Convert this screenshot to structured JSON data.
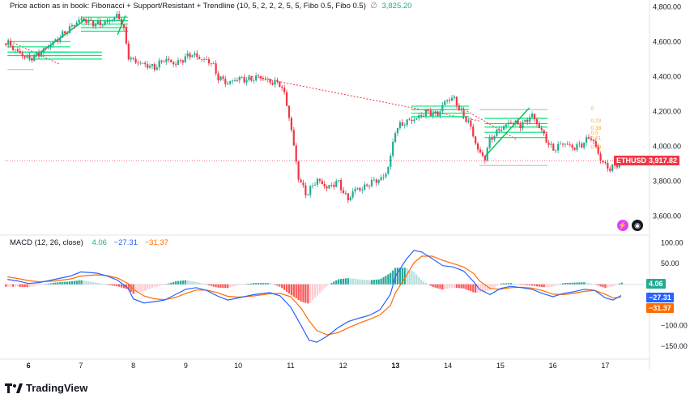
{
  "top_legend": {
    "title": "Price action as in book: Fibonacci + Support/Resistant + Trendline (10, 5, 2, 2, 2, 5, 5, Fibo 0.5, Fibo 0.5)",
    "symbol_char": "∅",
    "value": "3,825.20"
  },
  "macd_legend": {
    "title": "MACD (12, 26, close)",
    "hist_value": "4.06",
    "macd_value": "−27.31",
    "signal_value": "−31.37"
  },
  "price_tag": {
    "symbol": "ETHUSD",
    "value": "3,917.82",
    "color": "#f23645"
  },
  "macd_tags": [
    {
      "value": "4.06",
      "color": "#22ab94"
    },
    {
      "value": "−27.31",
      "color": "#2962ff"
    },
    {
      "value": "−31.37",
      "color": "#ff6d00"
    }
  ],
  "fib_labels": [
    "0",
    "0.23",
    "0.38",
    "0.5",
    "0.61",
    "0.78"
  ],
  "brand": "TradingView",
  "colors": {
    "up": "#22ab94",
    "down": "#f23645",
    "macd": "#2962ff",
    "signal": "#ff6d00",
    "trend": "#f23645",
    "fib": "#00e676"
  },
  "chart_data": [
    {
      "type": "candlestick",
      "ylim": [
        3500,
        4820
      ],
      "y_ticks": [
        "4,800.00",
        "4,600.00",
        "4,400.00",
        "4,200.00",
        "4,000.00",
        "3,800.00",
        "3,600.00"
      ],
      "y_tick_values": [
        4800,
        4600,
        4400,
        4200,
        4000,
        3800,
        3600
      ],
      "x_ticks": [
        "6",
        "7",
        "8",
        "9",
        "10",
        "11",
        "12",
        "13",
        "14",
        "15",
        "16",
        "17"
      ],
      "x_tick_bold": [
        true,
        false,
        false,
        false,
        false,
        false,
        false,
        true,
        false,
        false,
        false,
        false
      ],
      "x_tick_days": [
        6,
        7,
        8,
        9,
        10,
        11,
        12,
        13,
        14,
        15,
        16,
        17
      ],
      "x_range": [
        5.55,
        17.75
      ],
      "close_path": [
        [
          5.6,
          4590
        ],
        [
          5.8,
          4540
        ],
        [
          6.0,
          4500
        ],
        [
          6.2,
          4530
        ],
        [
          6.5,
          4600
        ],
        [
          6.8,
          4680
        ],
        [
          7.0,
          4730
        ],
        [
          7.3,
          4700
        ],
        [
          7.5,
          4710
        ],
        [
          7.7,
          4750
        ],
        [
          7.8,
          4700
        ],
        [
          7.9,
          4520
        ],
        [
          8.0,
          4490
        ],
        [
          8.2,
          4470
        ],
        [
          8.4,
          4450
        ],
        [
          8.6,
          4500
        ],
        [
          8.8,
          4470
        ],
        [
          9.0,
          4510
        ],
        [
          9.1,
          4530
        ],
        [
          9.3,
          4500
        ],
        [
          9.5,
          4480
        ],
        [
          9.6,
          4400
        ],
        [
          9.8,
          4360
        ],
        [
          10.0,
          4390
        ],
        [
          10.2,
          4380
        ],
        [
          10.4,
          4400
        ],
        [
          10.6,
          4370
        ],
        [
          10.8,
          4360
        ],
        [
          10.9,
          4280
        ],
        [
          11.0,
          4120
        ],
        [
          11.1,
          3920
        ],
        [
          11.15,
          3820
        ],
        [
          11.3,
          3720
        ],
        [
          11.5,
          3810
        ],
        [
          11.7,
          3760
        ],
        [
          11.9,
          3800
        ],
        [
          12.0,
          3740
        ],
        [
          12.1,
          3690
        ],
        [
          12.2,
          3750
        ],
        [
          12.4,
          3760
        ],
        [
          12.5,
          3790
        ],
        [
          12.7,
          3810
        ],
        [
          12.8,
          3830
        ],
        [
          12.9,
          3930
        ],
        [
          13.0,
          4100
        ],
        [
          13.2,
          4140
        ],
        [
          13.4,
          4160
        ],
        [
          13.6,
          4200
        ],
        [
          13.8,
          4180
        ],
        [
          13.95,
          4260
        ],
        [
          14.1,
          4280
        ],
        [
          14.3,
          4170
        ],
        [
          14.4,
          4140
        ],
        [
          14.5,
          4040
        ],
        [
          14.6,
          3960
        ],
        [
          14.7,
          3930
        ],
        [
          14.8,
          4040
        ],
        [
          15.0,
          4100
        ],
        [
          15.2,
          4140
        ],
        [
          15.4,
          4120
        ],
        [
          15.6,
          4180
        ],
        [
          15.7,
          4130
        ],
        [
          15.8,
          4080
        ],
        [
          15.9,
          4020
        ],
        [
          16.0,
          3980
        ],
        [
          16.2,
          4020
        ],
        [
          16.4,
          3990
        ],
        [
          16.6,
          4020
        ],
        [
          16.7,
          4060
        ],
        [
          16.8,
          4010
        ],
        [
          16.9,
          3930
        ],
        [
          17.0,
          3890
        ],
        [
          17.1,
          3870
        ],
        [
          17.2,
          3890
        ],
        [
          17.3,
          3917
        ]
      ],
      "current_price": 3917.82
    },
    {
      "type": "macd",
      "ylim": [
        -175,
        115
      ],
      "y_ticks": [
        "100.00",
        "50.00",
        "−100.00",
        "−150.00"
      ],
      "y_tick_values": [
        100,
        50,
        -100,
        -150
      ],
      "macd": [
        [
          5.6,
          12
        ],
        [
          5.8,
          8
        ],
        [
          6.0,
          2
        ],
        [
          6.2,
          4
        ],
        [
          6.5,
          12
        ],
        [
          6.8,
          20
        ],
        [
          7.0,
          30
        ],
        [
          7.3,
          27
        ],
        [
          7.5,
          20
        ],
        [
          7.7,
          10
        ],
        [
          7.9,
          -10
        ],
        [
          8.0,
          -35
        ],
        [
          8.2,
          -45
        ],
        [
          8.4,
          -42
        ],
        [
          8.6,
          -38
        ],
        [
          8.8,
          -25
        ],
        [
          9.0,
          -12
        ],
        [
          9.2,
          -8
        ],
        [
          9.4,
          -15
        ],
        [
          9.6,
          -28
        ],
        [
          9.8,
          -38
        ],
        [
          10.0,
          -33
        ],
        [
          10.3,
          -25
        ],
        [
          10.6,
          -20
        ],
        [
          10.8,
          -28
        ],
        [
          11.0,
          -55
        ],
        [
          11.2,
          -100
        ],
        [
          11.35,
          -135
        ],
        [
          11.5,
          -140
        ],
        [
          11.7,
          -125
        ],
        [
          11.9,
          -105
        ],
        [
          12.1,
          -90
        ],
        [
          12.3,
          -82
        ],
        [
          12.5,
          -75
        ],
        [
          12.7,
          -62
        ],
        [
          12.9,
          -25
        ],
        [
          13.0,
          20
        ],
        [
          13.2,
          60
        ],
        [
          13.35,
          82
        ],
        [
          13.5,
          78
        ],
        [
          13.7,
          62
        ],
        [
          13.9,
          45
        ],
        [
          14.1,
          42
        ],
        [
          14.3,
          32
        ],
        [
          14.5,
          5
        ],
        [
          14.6,
          -12
        ],
        [
          14.8,
          -25
        ],
        [
          15.0,
          -10
        ],
        [
          15.2,
          -5
        ],
        [
          15.4,
          -8
        ],
        [
          15.6,
          -12
        ],
        [
          15.8,
          -22
        ],
        [
          16.0,
          -30
        ],
        [
          16.2,
          -22
        ],
        [
          16.4,
          -18
        ],
        [
          16.6,
          -12
        ],
        [
          16.8,
          -15
        ],
        [
          17.0,
          -33
        ],
        [
          17.15,
          -38
        ],
        [
          17.3,
          -27
        ]
      ],
      "signal": [
        [
          5.6,
          18
        ],
        [
          5.8,
          14
        ],
        [
          6.0,
          9
        ],
        [
          6.2,
          6
        ],
        [
          6.5,
          8
        ],
        [
          6.8,
          13
        ],
        [
          7.0,
          20
        ],
        [
          7.3,
          23
        ],
        [
          7.5,
          21
        ],
        [
          7.7,
          15
        ],
        [
          7.9,
          2
        ],
        [
          8.0,
          -12
        ],
        [
          8.2,
          -28
        ],
        [
          8.4,
          -35
        ],
        [
          8.6,
          -37
        ],
        [
          8.8,
          -32
        ],
        [
          9.0,
          -22
        ],
        [
          9.2,
          -14
        ],
        [
          9.4,
          -14
        ],
        [
          9.6,
          -20
        ],
        [
          9.8,
          -29
        ],
        [
          10.0,
          -31
        ],
        [
          10.3,
          -28
        ],
        [
          10.6,
          -23
        ],
        [
          10.8,
          -22
        ],
        [
          11.0,
          -30
        ],
        [
          11.2,
          -58
        ],
        [
          11.35,
          -88
        ],
        [
          11.5,
          -112
        ],
        [
          11.7,
          -122
        ],
        [
          11.9,
          -117
        ],
        [
          12.1,
          -105
        ],
        [
          12.3,
          -94
        ],
        [
          12.5,
          -85
        ],
        [
          12.7,
          -74
        ],
        [
          12.9,
          -52
        ],
        [
          13.0,
          -20
        ],
        [
          13.2,
          20
        ],
        [
          13.35,
          52
        ],
        [
          13.5,
          68
        ],
        [
          13.7,
          68
        ],
        [
          13.9,
          58
        ],
        [
          14.1,
          50
        ],
        [
          14.3,
          42
        ],
        [
          14.5,
          25
        ],
        [
          14.6,
          8
        ],
        [
          14.8,
          -10
        ],
        [
          15.0,
          -12
        ],
        [
          15.2,
          -8
        ],
        [
          15.4,
          -7
        ],
        [
          15.6,
          -9
        ],
        [
          15.8,
          -15
        ],
        [
          16.0,
          -24
        ],
        [
          16.2,
          -25
        ],
        [
          16.4,
          -22
        ],
        [
          16.6,
          -17
        ],
        [
          16.8,
          -15
        ],
        [
          17.0,
          -24
        ],
        [
          17.15,
          -33
        ],
        [
          17.3,
          -31
        ]
      ],
      "latest": {
        "histogram": 4.06,
        "macd": -27.31,
        "signal": -31.37
      }
    }
  ]
}
